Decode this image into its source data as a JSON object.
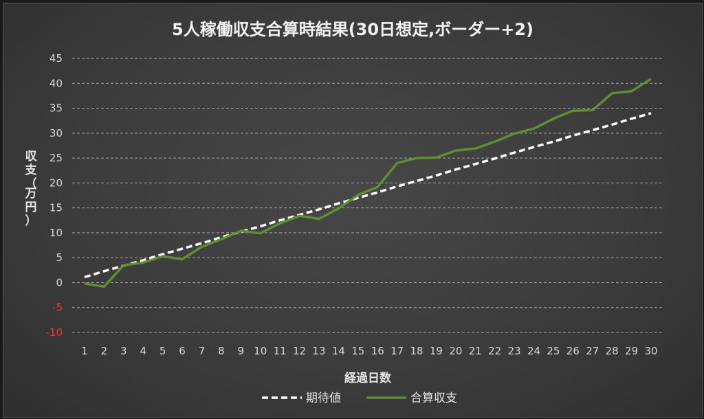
{
  "chart_data": {
    "type": "line",
    "title": "5人稼働収支合算時結果(30日想定,ボーダー+2)",
    "xlabel": "経過日数",
    "ylabel": "収支（万円）",
    "x": [
      1,
      2,
      3,
      4,
      5,
      6,
      7,
      8,
      9,
      10,
      11,
      12,
      13,
      14,
      15,
      16,
      17,
      18,
      19,
      20,
      21,
      22,
      23,
      24,
      25,
      26,
      27,
      28,
      29,
      30
    ],
    "ylim": [
      -10,
      45
    ],
    "yticks": [
      45,
      40,
      35,
      30,
      25,
      20,
      15,
      10,
      5,
      0,
      -5,
      -10
    ],
    "grid": true,
    "legend_position": "bottom",
    "series": [
      {
        "name": "期待値",
        "style": "dashed",
        "color": "#ffffff",
        "values": [
          1.1,
          2.3,
          3.4,
          4.5,
          5.7,
          6.8,
          7.9,
          9.1,
          10.2,
          11.3,
          12.5,
          13.6,
          14.7,
          15.9,
          17.0,
          18.1,
          19.3,
          20.4,
          21.5,
          22.7,
          23.8,
          24.9,
          26.1,
          27.2,
          28.3,
          29.5,
          30.6,
          31.7,
          32.9,
          34.0
        ]
      },
      {
        "name": "合算収支",
        "style": "solid",
        "color": "#5f8f2f",
        "values": [
          -0.2,
          -0.8,
          3.5,
          4.0,
          5.3,
          4.7,
          7.2,
          8.7,
          10.4,
          9.9,
          11.9,
          13.4,
          12.8,
          14.9,
          17.6,
          19.2,
          24.0,
          25.0,
          25.1,
          26.5,
          26.9,
          28.3,
          29.9,
          30.9,
          32.9,
          34.5,
          34.6,
          38.0,
          38.4,
          40.9
        ]
      }
    ]
  }
}
